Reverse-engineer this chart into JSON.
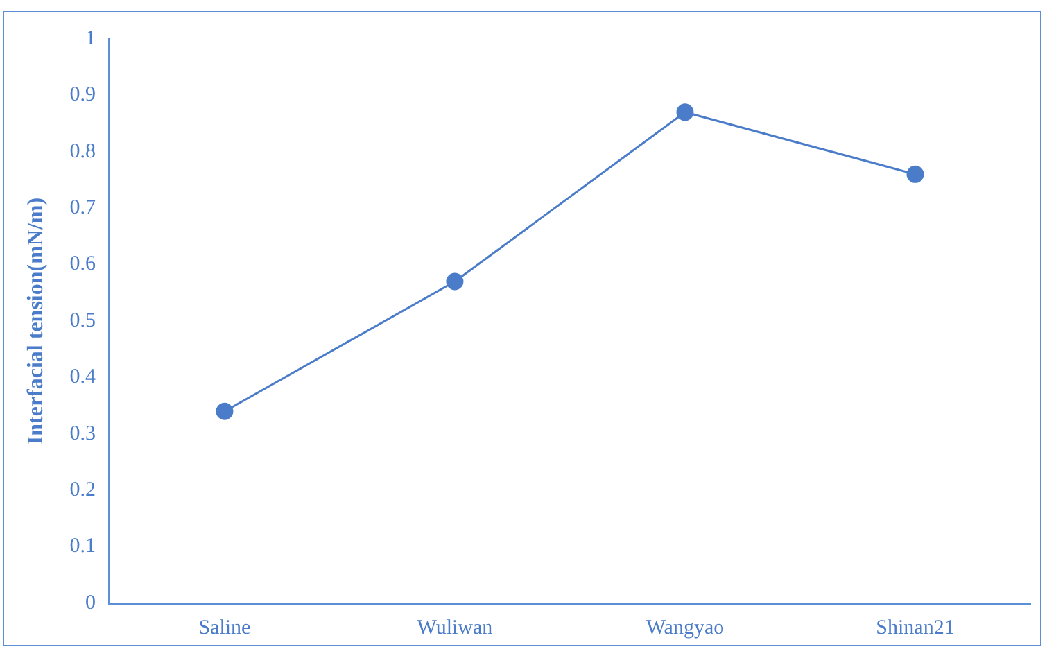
{
  "chart_data": {
    "type": "line",
    "ylabel": "Interfacial tension(mN/m)",
    "categories": [
      "Saline",
      "Wuliwan",
      "Wangyao",
      "Shinan21"
    ],
    "series": [
      {
        "color": "#4a7cc9",
        "values": [
          0.34,
          0.57,
          0.87,
          0.76
        ]
      }
    ],
    "ylim": [
      0,
      1
    ],
    "yticks": [
      0,
      0.1,
      0.2,
      0.3,
      0.4,
      0.5,
      0.6,
      0.7,
      0.8,
      0.9,
      1
    ],
    "grid": false,
    "legend": false,
    "marker": "circle",
    "line_style": "solid"
  }
}
